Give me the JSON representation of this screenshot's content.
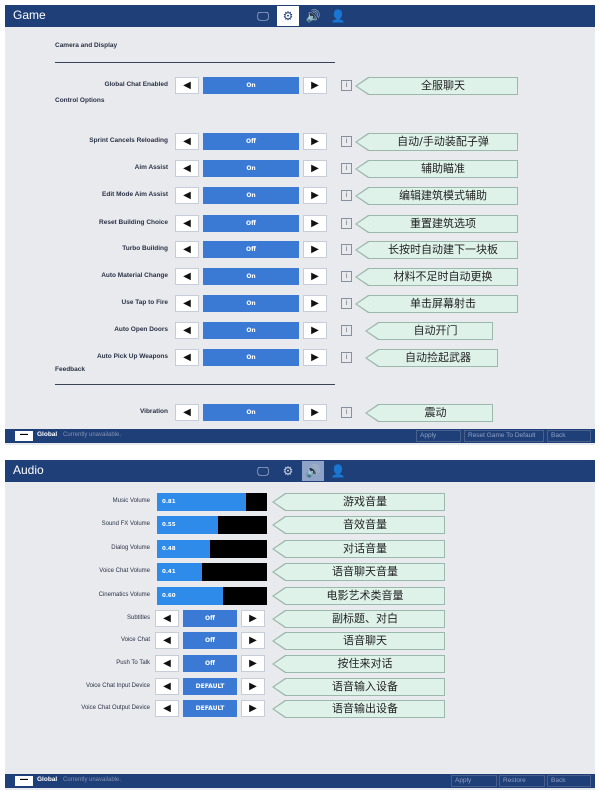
{
  "game": {
    "title": "Game",
    "tabs": [
      {
        "icon": "monitor-icon",
        "glyph": "🖵"
      },
      {
        "icon": "gear-icon",
        "glyph": "⚙"
      },
      {
        "icon": "speaker-icon",
        "glyph": "🔊"
      },
      {
        "icon": "person-icon",
        "glyph": "👤"
      }
    ],
    "sections": {
      "camera": "Camera and Display",
      "control": "Control Options",
      "feedback": "Feedback"
    },
    "rows": [
      {
        "label": "Global Chat Enabled",
        "value": "On",
        "note": "全服聊天"
      },
      {
        "label": "Sprint Cancels Reloading",
        "value": "Off",
        "note": "自动/手动装配子弹"
      },
      {
        "label": "Aim Assist",
        "value": "On",
        "note": "辅助瞄准"
      },
      {
        "label": "Edit Mode Aim Assist",
        "value": "On",
        "note": "编辑建筑模式辅助"
      },
      {
        "label": "Reset Building Choice",
        "value": "Off",
        "note": "重置建筑选项"
      },
      {
        "label": "Turbo Building",
        "value": "Off",
        "note": "长按时自动建下一块板"
      },
      {
        "label": "Auto Material Change",
        "value": "On",
        "note": "材料不足时自动更换"
      },
      {
        "label": "Use Tap to Fire",
        "value": "On",
        "note": "单击屏幕射击"
      },
      {
        "label": "Auto Open Doors",
        "value": "On",
        "note": "自动开门"
      },
      {
        "label": "Auto Pick Up Weapons",
        "value": "On",
        "note": "自动捡起武器"
      },
      {
        "label": "Vibration",
        "value": "On",
        "note": "震动"
      }
    ],
    "footer": {
      "minus": "—",
      "global": "Global",
      "status": "Currently unavailable.",
      "buttons": [
        "Apply",
        "Reset Game To Default",
        "Back"
      ]
    },
    "arrow_left": "◀",
    "arrow_right": "▶",
    "info_glyph": "i"
  },
  "audio": {
    "title": "Audio",
    "volumes": [
      {
        "label": "Music Volume",
        "value": "0.81",
        "level": 0.81,
        "note": "游戏音量"
      },
      {
        "label": "Sound FX Volume",
        "value": "0.55",
        "level": 0.55,
        "note": "音效音量"
      },
      {
        "label": "Dialog Volume",
        "value": "0.48",
        "level": 0.48,
        "note": "对话音量"
      },
      {
        "label": "Voice Chat Volume",
        "value": "0.41",
        "level": 0.41,
        "note": "语音聊天音量"
      },
      {
        "label": "Cinematics Volume",
        "value": "0.60",
        "level": 0.6,
        "note": "电影艺术类音量"
      }
    ],
    "options": [
      {
        "label": "Subtitles",
        "value": "Off",
        "note": "副标题、对白"
      },
      {
        "label": "Voice Chat",
        "value": "Off",
        "note": "语音聊天"
      },
      {
        "label": "Push To Talk",
        "value": "Off",
        "note": "按住来对话"
      },
      {
        "label": "Voice Chat Input Device",
        "value": "DEFAULT",
        "note": "语音输入设备"
      },
      {
        "label": "Voice Chat Output Device",
        "value": "DEFAULT",
        "note": "语音输出设备"
      }
    ],
    "footer": {
      "minus": "—",
      "global": "Global",
      "status": "Currently unavailable.",
      "buttons": [
        "Apply",
        "Restore",
        "Back"
      ]
    }
  },
  "colors": {
    "titlebar": "#1f3f78",
    "value_box": "#3a7ad4",
    "slider_fill": "#2e8bea",
    "callout": "#dff2ea"
  }
}
